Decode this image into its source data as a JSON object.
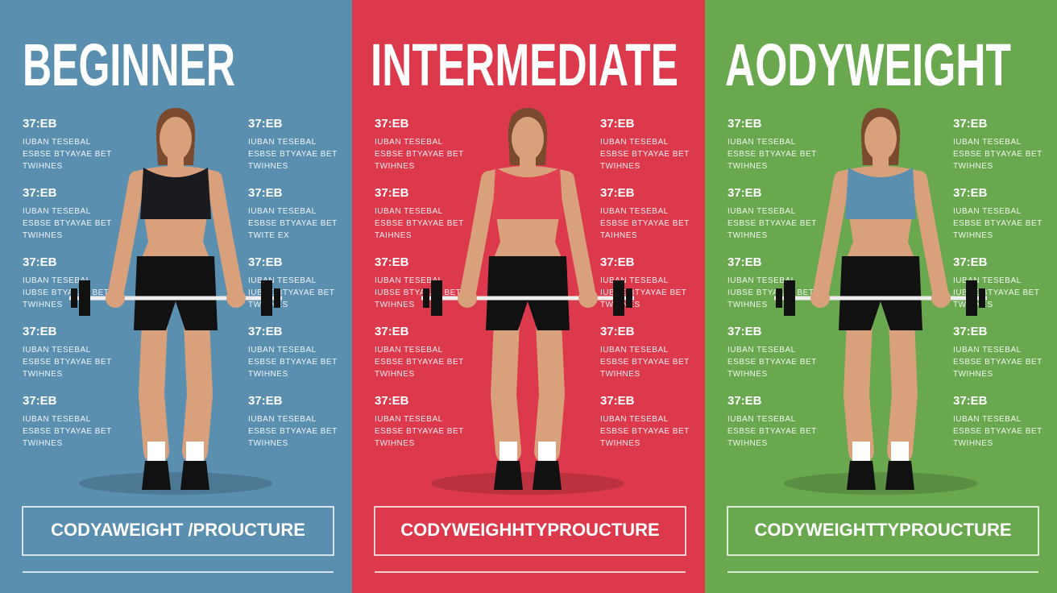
{
  "panels": [
    {
      "title": "BEGINNER",
      "footer": "CODYAWEIGHT /PROUCTURE",
      "stats": [
        {
          "heading": "37:EB",
          "lines": [
            "IUBAN TESEBAL",
            "ESBSE BTYAYAE BET",
            "TWIHNES"
          ]
        },
        {
          "heading": "37:EB",
          "lines": [
            "IUBAN TESEBAL",
            "ESBSE BTYAYAE BET",
            "TWIHNES"
          ]
        },
        {
          "heading": "37:EB",
          "lines": [
            "IUBAN TESEBAL",
            "ESBSE BTYAYAE BET",
            "TWIHNES"
          ]
        },
        {
          "heading": "37:EB",
          "lines": [
            "IUBAN TESEBAL",
            "ESBSE BTYAYAE BET",
            "TWITE EX"
          ]
        },
        {
          "heading": "37:EB",
          "lines": [
            "IUBAN TESEBAL",
            "IUBSE BTYAYAE BET",
            "TWIHNES"
          ]
        },
        {
          "heading": "37:EB",
          "lines": [
            "IUBAN TESEBAL",
            "IUBSE BTYAYAE BET",
            "TWIHNES"
          ]
        },
        {
          "heading": "37:EB",
          "lines": [
            "IUBAN TESEBAL",
            "ESBSE BTYAYAE BET",
            "TWIHNES"
          ]
        },
        {
          "heading": "37:EB",
          "lines": [
            "IUBAN TESEBAL",
            "ESBSE BTYAYAE BET",
            "TWIHNES"
          ]
        },
        {
          "heading": "37:EB",
          "lines": [
            "IUBAN TESEBAL",
            "ESBSE BTYAYAE BET",
            "TWIHNES"
          ]
        },
        {
          "heading": "37:EB",
          "lines": [
            "IUBAN TESEBAL",
            "ESBSE BTYAYAE BET",
            "TWIHNES"
          ]
        }
      ]
    },
    {
      "title": "INTERMEDIATE",
      "footer": "CODYWEIGHHTYPROUCTURE",
      "stats": [
        {
          "heading": "37:EB",
          "lines": [
            "IUBAN TESEBAL",
            "ESBSE BTYAYAE BET",
            "TWIHNES"
          ]
        },
        {
          "heading": "37:EB",
          "lines": [
            "IUBAN TESEBAL",
            "ESBSE BTYAYAE BET",
            "TWIHNES"
          ]
        },
        {
          "heading": "37:EB",
          "lines": [
            "IUBAN TESEBAL",
            "ESBSE BTYAYAE BET",
            "TAIHNES"
          ]
        },
        {
          "heading": "37:EB",
          "lines": [
            "IUBAN TESEBAL",
            "ESBSE BTYAYAE BET",
            "TAIHNES"
          ]
        },
        {
          "heading": "37:EB",
          "lines": [
            "IUBAN TESEBAL",
            "IUBSE BTYAYAE BET",
            "TWIHNES"
          ]
        },
        {
          "heading": "37:EB",
          "lines": [
            "IUBAN TESEBAL",
            "IUBSE BTYAYAE BET",
            "TWIHNES"
          ]
        },
        {
          "heading": "37:EB",
          "lines": [
            "IUBAN TESEBAL",
            "ESBSE BTYAYAE BET",
            "TWIHNES"
          ]
        },
        {
          "heading": "37:EB",
          "lines": [
            "IUBAN TESEBAL",
            "ESBSE BTYAYAE BET",
            "TWIHNES"
          ]
        },
        {
          "heading": "37:EB",
          "lines": [
            "IUBAN TESEBAL",
            "ESBSE BTYAYAE BET",
            "TWIHNES"
          ]
        },
        {
          "heading": "37:EB",
          "lines": [
            "IUBAN TESEBAL",
            "ESBSE BTYAYAE BET",
            "TWIHNES"
          ]
        }
      ]
    },
    {
      "title": "AODYWEIGHT",
      "footer": "CODYWEIGHTTYPROUCTURE",
      "stats": [
        {
          "heading": "37:EB",
          "lines": [
            "IUBAN TESEBAL",
            "ESBSE BTYAYAE BET",
            "TWIHNES"
          ]
        },
        {
          "heading": "37:EB",
          "lines": [
            "IUBAN TESEBAL",
            "ESBSE BTYAYAE BET",
            "TWIHNES"
          ]
        },
        {
          "heading": "37:EB",
          "lines": [
            "IUBAN TESEBAL",
            "ESBSE BTYAYAE BET",
            "TWIHNES"
          ]
        },
        {
          "heading": "37:EB",
          "lines": [
            "IUBAN TESEBAL",
            "ESBSE BTYAYAE BET",
            "TWIHNES"
          ]
        },
        {
          "heading": "37:EB",
          "lines": [
            "IUBAN TESEBAL",
            "IUBSE BTYAYAE BET",
            "TWIHNES"
          ]
        },
        {
          "heading": "37:EB",
          "lines": [
            "IUBAN TESEBAL",
            "IUBSE BTYAYAE BET",
            "TWIHNES"
          ]
        },
        {
          "heading": "37:EB",
          "lines": [
            "IUBAN TESEBAL",
            "ESBSE BTYAYAE BET",
            "TWIHNES"
          ]
        },
        {
          "heading": "37:EB",
          "lines": [
            "IUBAN TESEBAL",
            "ESBSE BTYAYAE BET",
            "TWIHNES"
          ]
        },
        {
          "heading": "37:EB",
          "lines": [
            "IUBAN TESEBAL",
            "ESBSE BTYAYAE BET",
            "TWIHNES"
          ]
        },
        {
          "heading": "37:EB",
          "lines": [
            "IUBAN TESEBAL",
            "ESBSE BTYAYAE BET",
            "TWIHNES"
          ]
        }
      ]
    }
  ]
}
